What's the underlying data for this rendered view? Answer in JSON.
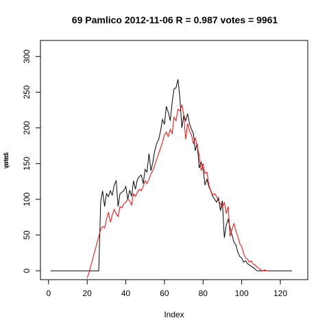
{
  "chart_data": {
    "type": "line",
    "title": "69 Pamlico 2012-11-06 R = 0.987 votes = 9961",
    "xlabel": "Index",
    "ylabel_overlapping": [
      "votes",
      "pred"
    ],
    "xlim": [
      1,
      130
    ],
    "ylim": [
      0,
      310
    ],
    "x_ticks": [
      0,
      20,
      40,
      60,
      80,
      100,
      120
    ],
    "y_ticks": [
      0,
      50,
      100,
      150,
      200,
      250,
      300
    ],
    "grid": false,
    "legend": "none",
    "series": [
      {
        "color": "#000000",
        "x_start": 1,
        "values": [
          0,
          0,
          0,
          0,
          0,
          0,
          0,
          0,
          0,
          0,
          0,
          0,
          0,
          0,
          0,
          0,
          0,
          0,
          0,
          0,
          0,
          0,
          0,
          0,
          0,
          0,
          97,
          112,
          90,
          108,
          104,
          112,
          106,
          120,
          126,
          90,
          108,
          110,
          112,
          118,
          100,
          113,
          104,
          126,
          114,
          128,
          132,
          134,
          122,
          142,
          138,
          164,
          140,
          152,
          168,
          178,
          184,
          196,
          212,
          205,
          230,
          222,
          210,
          236,
          255,
          256,
          268,
          242,
          200,
          218,
          210,
          220,
          206,
          198,
          192,
          168,
          178,
          144,
          152,
          142,
          120,
          128,
          118,
          112,
          104,
          100,
          96,
          102,
          84,
          98,
          46,
          64,
          72,
          60,
          50,
          40,
          36,
          26,
          20,
          18,
          12,
          14,
          10,
          8,
          6,
          5,
          2,
          0,
          0,
          0,
          0,
          1,
          0,
          0,
          0,
          0,
          0,
          0,
          0,
          0,
          0,
          0,
          0,
          0,
          0,
          0
        ]
      },
      {
        "color": "#ff0000",
        "x_start": 20,
        "values": [
          -10,
          -2,
          8,
          18,
          28,
          38,
          48,
          58,
          62,
          60,
          72,
          82,
          68,
          78,
          86,
          80,
          76,
          90,
          88,
          94,
          96,
          100,
          98,
          92,
          108,
          104,
          110,
          114,
          112,
          118,
          126,
          122,
          128,
          136,
          140,
          148,
          156,
          164,
          172,
          180,
          190,
          194,
          188,
          198,
          192,
          215,
          210,
          226,
          224,
          232,
          218,
          184,
          206,
          196,
          190,
          178,
          186,
          174,
          162,
          140,
          150,
          136,
          138,
          120,
          112,
          106,
          108,
          104,
          98,
          94,
          88,
          96,
          80,
          90,
          48,
          58,
          66,
          56,
          48,
          38,
          34,
          24,
          18,
          16,
          12,
          14,
          9,
          8,
          5,
          3,
          1,
          0,
          0,
          0,
          0
        ]
      }
    ]
  }
}
